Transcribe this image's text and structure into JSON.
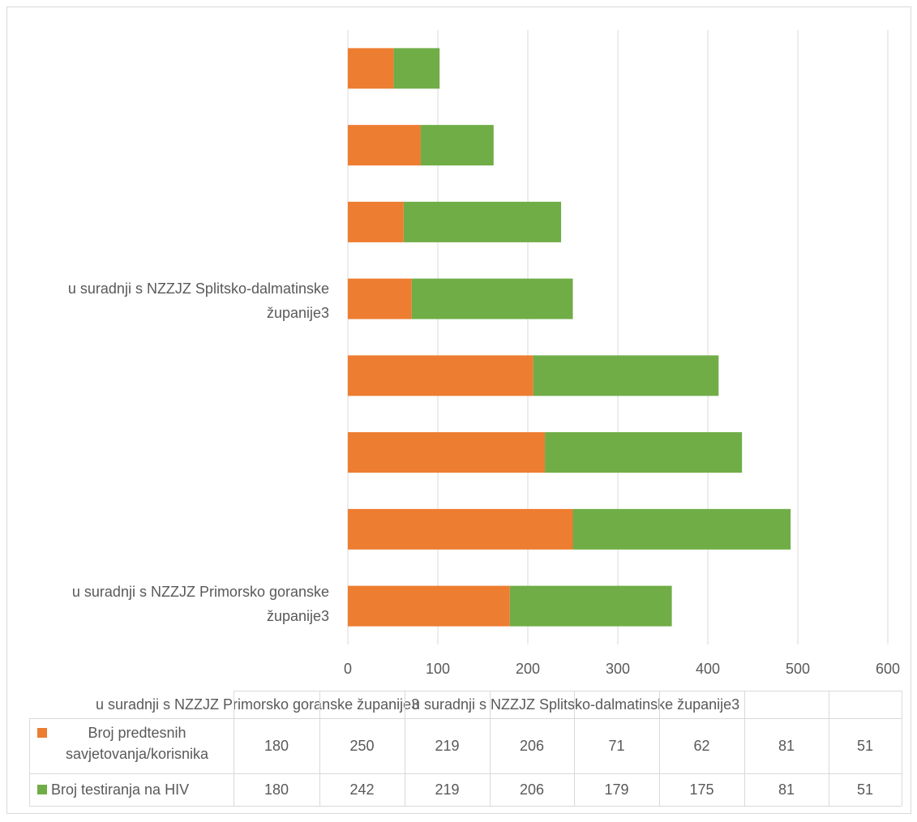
{
  "chart_data": {
    "type": "bar",
    "orientation": "horizontal",
    "stacked": true,
    "categories": [
      "u suradnji s NZZJZ Primorsko goranske županije3",
      "",
      "",
      "",
      "u suradnji s NZZJZ Splitsko-dalmatinske županije3",
      "",
      "",
      ""
    ],
    "table_header_labels": [
      "u suradnji s NZZJZ Primorsko goranske županije3",
      "u suradnji s NZZJZ Splitsko-dalmatinske županije3"
    ],
    "series": [
      {
        "name": "Broj predtesnih savjetovanja/korisnika",
        "color": "#ed7d31",
        "values": [
          180,
          250,
          219,
          206,
          71,
          62,
          81,
          51
        ]
      },
      {
        "name": "Broj testiranja na HIV",
        "color": "#70ad47",
        "values": [
          180,
          242,
          219,
          206,
          179,
          175,
          81,
          51
        ]
      }
    ],
    "xlim": [
      0,
      600
    ],
    "xticks": [
      "0",
      "100",
      "200",
      "300",
      "400",
      "500",
      "600"
    ],
    "grid": true,
    "legend": "data table"
  }
}
